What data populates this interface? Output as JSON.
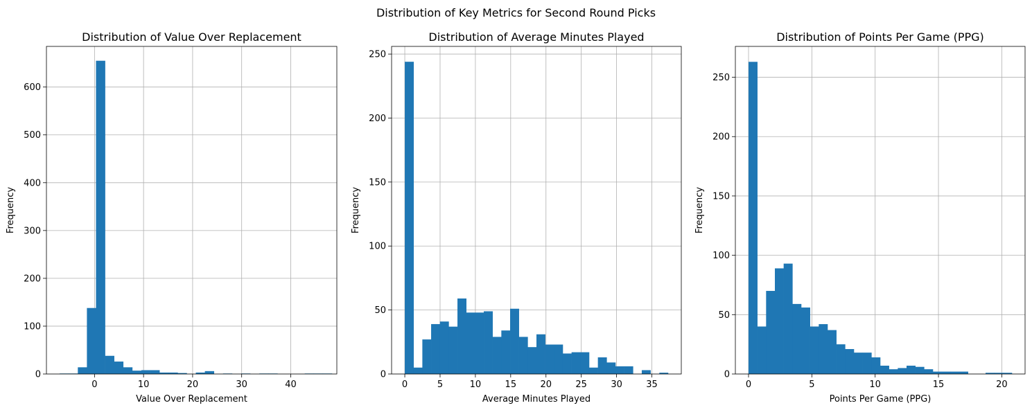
{
  "figure": {
    "suptitle": "Distribution of Key Metrics for Second Round Picks"
  },
  "colors": {
    "bar": "#1f77b4",
    "grid": "#b0b0b0",
    "axis": "#000000"
  },
  "chart_data": [
    {
      "type": "bar",
      "title": "Distribution of Value Over Replacement",
      "xlabel": "Value Over Replacement",
      "ylabel": "Frequency",
      "xlim": [
        -9.8,
        49.4
      ],
      "ylim": [
        0,
        685
      ],
      "grid": true,
      "xticks": [
        -10,
        0,
        10,
        20,
        30,
        40,
        50
      ],
      "yticks": [
        0,
        100,
        200,
        300,
        400,
        500,
        600
      ],
      "bin_edges": [
        -7.1,
        -5.25,
        -3.4,
        -1.55,
        0.3,
        2.15,
        4.0,
        5.85,
        7.7,
        9.55,
        11.4,
        13.25,
        15.1,
        16.95,
        18.8,
        20.65,
        22.5,
        24.35,
        26.2,
        28.05,
        29.9,
        31.75,
        33.6,
        35.45,
        37.3,
        39.15,
        41.0,
        42.85,
        44.7,
        46.55,
        48.4
      ],
      "counts": [
        1,
        1,
        14,
        138,
        655,
        38,
        26,
        14,
        7,
        8,
        8,
        3,
        3,
        2,
        0,
        3,
        6,
        0,
        1,
        0,
        1,
        0,
        1,
        1,
        0,
        0,
        0,
        1,
        1,
        1
      ]
    },
    {
      "type": "bar",
      "title": "Distribution of Average Minutes Played",
      "xlabel": "Average Minutes Played",
      "ylabel": "Frequency",
      "xlim": [
        -1.87,
        39.17
      ],
      "ylim": [
        0,
        256
      ],
      "grid": true,
      "xticks": [
        0,
        5,
        10,
        15,
        20,
        25,
        30,
        35
      ],
      "yticks": [
        0,
        50,
        100,
        150,
        200,
        250
      ],
      "bin_edges": [
        0.0,
        1.2433,
        2.4867,
        3.73,
        4.9733,
        6.2167,
        7.46,
        8.7033,
        9.9467,
        11.19,
        12.4333,
        13.6767,
        14.92,
        16.1633,
        17.4067,
        18.65,
        19.8933,
        21.1367,
        22.38,
        23.6233,
        24.8667,
        26.11,
        27.3533,
        28.5967,
        29.84,
        31.0833,
        32.3267,
        33.57,
        34.8133,
        36.0567,
        37.3
      ],
      "counts": [
        244,
        5,
        27,
        39,
        41,
        37,
        59,
        48,
        48,
        49,
        29,
        34,
        51,
        29,
        21,
        31,
        23,
        23,
        16,
        17,
        17,
        5,
        13,
        9,
        6,
        6,
        0,
        3,
        0,
        1
      ]
    },
    {
      "type": "bar",
      "title": "Distribution of Points Per Game (PPG)",
      "xlabel": "Points Per Game (PPG)",
      "ylabel": "Frequency",
      "xlim": [
        -1.04,
        21.84
      ],
      "ylim": [
        0,
        276
      ],
      "grid": true,
      "xticks": [
        0,
        5,
        10,
        15,
        20
      ],
      "yticks": [
        0,
        50,
        100,
        150,
        200,
        250
      ],
      "bin_edges": [
        0.0,
        0.6933,
        1.3867,
        2.08,
        2.7733,
        3.4667,
        4.16,
        4.8533,
        5.5467,
        6.24,
        6.9333,
        7.6267,
        8.32,
        9.0133,
        9.7067,
        10.4,
        11.0933,
        11.7867,
        12.48,
        13.1733,
        13.8667,
        14.56,
        15.2533,
        15.9467,
        16.64,
        17.3333,
        18.0267,
        18.72,
        19.4133,
        20.1067,
        20.8
      ],
      "counts": [
        263,
        40,
        70,
        89,
        93,
        59,
        56,
        40,
        42,
        37,
        25,
        21,
        18,
        18,
        14,
        7,
        4,
        5,
        7,
        6,
        4,
        2,
        2,
        2,
        2,
        0,
        0,
        1,
        1,
        1
      ]
    }
  ]
}
